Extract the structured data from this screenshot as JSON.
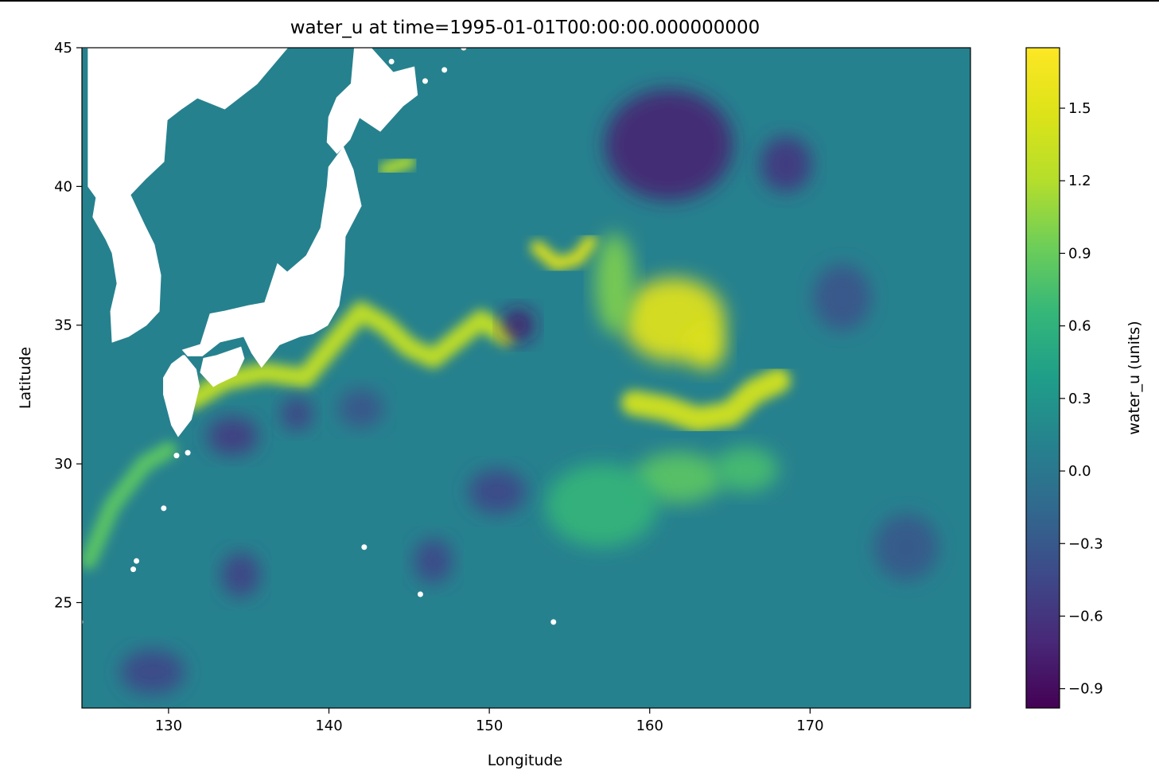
{
  "chart_data": {
    "type": "heatmap",
    "title": "water_u at time=1995-01-01T00:00:00.000000000",
    "xlabel": "Longitude",
    "ylabel": "Latitude",
    "xlim": [
      124.6,
      180.0
    ],
    "ylim": [
      21.2,
      45.0
    ],
    "x_ticks": [
      {
        "value": 130,
        "label": "130"
      },
      {
        "value": 140,
        "label": "140"
      },
      {
        "value": 150,
        "label": "150"
      },
      {
        "value": 160,
        "label": "160"
      },
      {
        "value": 170,
        "label": "170"
      }
    ],
    "y_ticks": [
      {
        "value": 25,
        "label": "25"
      },
      {
        "value": 30,
        "label": "30"
      },
      {
        "value": 35,
        "label": "35"
      },
      {
        "value": 40,
        "label": "40"
      },
      {
        "value": 45,
        "label": "45"
      }
    ],
    "colorbar": {
      "label": "water_u (units)",
      "colormap": "viridis",
      "vmin": -0.98,
      "vmax": 1.75,
      "ticks": [
        {
          "value": 1.5,
          "label": "1.5"
        },
        {
          "value": 1.2,
          "label": "1.2"
        },
        {
          "value": 0.9,
          "label": "0.9"
        },
        {
          "value": 0.6,
          "label": "0.6"
        },
        {
          "value": 0.3,
          "label": "0.3"
        },
        {
          "value": 0.0,
          "label": "0.0"
        },
        {
          "value": -0.3,
          "label": "−0.3"
        },
        {
          "value": -0.6,
          "label": "−0.6"
        },
        {
          "value": -0.9,
          "label": "−0.9"
        }
      ]
    },
    "grid": false,
    "background_value": 0.1,
    "features": [
      {
        "kind": "jet",
        "points": [
          [
            131.5,
            32.3
          ],
          [
            133.5,
            33.0
          ],
          [
            136,
            33.3
          ],
          [
            138.5,
            33.1
          ],
          [
            140.5,
            34.5
          ],
          [
            142,
            35.5
          ],
          [
            143.5,
            35.0
          ],
          [
            145,
            34.2
          ],
          [
            146.5,
            33.8
          ],
          [
            148,
            34.5
          ],
          [
            149.5,
            35.2
          ],
          [
            151,
            34.6
          ]
        ],
        "value": 1.3,
        "width": 0.7
      },
      {
        "kind": "jet",
        "points": [
          [
            143.5,
            40.6
          ],
          [
            145,
            40.9
          ]
        ],
        "value": 1.2,
        "width": 0.5
      },
      {
        "kind": "jet",
        "points": [
          [
            153,
            37.8
          ],
          [
            154.2,
            37.2
          ],
          [
            155.5,
            37.4
          ],
          [
            156.3,
            38.0
          ]
        ],
        "value": 1.5,
        "width": 0.5
      },
      {
        "kind": "blob",
        "lon": 161.5,
        "lat": 35.2,
        "rx": 3.2,
        "ry": 1.5,
        "value": 1.55
      },
      {
        "kind": "blob",
        "lon": 163.5,
        "lat": 34.2,
        "rx": 1.2,
        "ry": 0.8,
        "value": 1.5
      },
      {
        "kind": "blob",
        "lon": 157.8,
        "lat": 36.5,
        "rx": 1.2,
        "ry": 1.8,
        "value": 1.0
      },
      {
        "kind": "jet",
        "points": [
          [
            159,
            32.2
          ],
          [
            161,
            32.0
          ],
          [
            163,
            31.6
          ],
          [
            165,
            31.8
          ],
          [
            166.5,
            32.6
          ],
          [
            168,
            33.0
          ]
        ],
        "value": 1.4,
        "width": 0.9
      },
      {
        "kind": "blob",
        "lon": 161.8,
        "lat": 29.5,
        "rx": 2.8,
        "ry": 0.9,
        "value": 0.85
      },
      {
        "kind": "blob",
        "lon": 166,
        "lat": 29.8,
        "rx": 2.0,
        "ry": 0.8,
        "value": 0.75
      },
      {
        "kind": "blob",
        "lon": 157,
        "lat": 28.5,
        "rx": 3.5,
        "ry": 1.5,
        "value": 0.65
      },
      {
        "kind": "jet",
        "points": [
          [
            125,
            26.5
          ],
          [
            126.5,
            28.5
          ],
          [
            128.5,
            30.0
          ],
          [
            130,
            30.5
          ]
        ],
        "value": 0.85,
        "width": 0.6
      },
      {
        "kind": "blob",
        "lon": 161.2,
        "lat": 41.5,
        "rx": 4.0,
        "ry": 2.0,
        "value": -0.75
      },
      {
        "kind": "blob",
        "lon": 168.5,
        "lat": 40.8,
        "rx": 1.6,
        "ry": 1.0,
        "value": -0.6
      },
      {
        "kind": "blob",
        "lon": 151.8,
        "lat": 35.0,
        "rx": 1.0,
        "ry": 0.6,
        "value": -0.8
      },
      {
        "kind": "blob",
        "lon": 134,
        "lat": 31.0,
        "rx": 1.6,
        "ry": 0.7,
        "value": -0.55
      },
      {
        "kind": "blob",
        "lon": 138,
        "lat": 31.8,
        "rx": 1.0,
        "ry": 0.6,
        "value": -0.5
      },
      {
        "kind": "blob",
        "lon": 150.5,
        "lat": 29.0,
        "rx": 1.8,
        "ry": 0.8,
        "value": -0.45
      },
      {
        "kind": "blob",
        "lon": 146.5,
        "lat": 26.5,
        "rx": 1.2,
        "ry": 0.8,
        "value": -0.45
      },
      {
        "kind": "blob",
        "lon": 134.5,
        "lat": 26.0,
        "rx": 1.2,
        "ry": 0.8,
        "value": -0.5
      },
      {
        "kind": "blob",
        "lon": 129,
        "lat": 22.5,
        "rx": 2.0,
        "ry": 0.8,
        "value": -0.45
      },
      {
        "kind": "blob",
        "lon": 172,
        "lat": 36.0,
        "rx": 1.8,
        "ry": 1.2,
        "value": -0.35
      },
      {
        "kind": "blob",
        "lon": 176,
        "lat": 27.0,
        "rx": 2.0,
        "ry": 1.2,
        "value": -0.3
      },
      {
        "kind": "blob",
        "lon": 142,
        "lat": 32.0,
        "rx": 1.4,
        "ry": 0.7,
        "value": -0.35
      }
    ],
    "land": [
      [
        [
          124.6,
          45.0
        ],
        [
          125.0,
          45.0
        ],
        [
          125.0,
          40.0
        ],
        [
          125.5,
          39.6
        ],
        [
          125.3,
          38.9
        ],
        [
          126.1,
          38.1
        ],
        [
          126.5,
          37.6
        ],
        [
          126.8,
          36.5
        ],
        [
          126.4,
          35.5
        ],
        [
          126.5,
          34.4
        ],
        [
          127.5,
          34.6
        ],
        [
          128.6,
          35.0
        ],
        [
          129.4,
          35.5
        ],
        [
          129.5,
          36.8
        ],
        [
          129.1,
          37.9
        ],
        [
          128.5,
          38.6
        ],
        [
          127.6,
          39.7
        ],
        [
          128.6,
          40.3
        ],
        [
          129.7,
          40.9
        ],
        [
          129.9,
          42.4
        ],
        [
          130.8,
          42.8
        ],
        [
          131.8,
          43.2
        ],
        [
          133.5,
          42.8
        ],
        [
          135.5,
          43.7
        ],
        [
          137.4,
          45.0
        ]
      ],
      [
        [
          130.9,
          33.9
        ],
        [
          130.2,
          33.6
        ],
        [
          129.7,
          33.1
        ],
        [
          129.7,
          32.5
        ],
        [
          130.2,
          31.4
        ],
        [
          130.6,
          31.0
        ],
        [
          131.0,
          31.3
        ],
        [
          131.4,
          31.6
        ],
        [
          131.9,
          32.8
        ],
        [
          131.7,
          33.4
        ],
        [
          131.0,
          33.9
        ]
      ],
      [
        [
          130.9,
          34.1
        ],
        [
          132.0,
          34.3
        ],
        [
          132.6,
          35.4
        ],
        [
          133.5,
          35.5
        ],
        [
          135.0,
          35.7
        ],
        [
          136.0,
          35.8
        ],
        [
          136.8,
          37.2
        ],
        [
          137.4,
          36.9
        ],
        [
          138.6,
          37.5
        ],
        [
          139.5,
          38.5
        ],
        [
          139.9,
          40.0
        ],
        [
          140.0,
          40.7
        ],
        [
          140.9,
          41.4
        ],
        [
          141.5,
          40.6
        ],
        [
          142.0,
          39.3
        ],
        [
          141.0,
          38.2
        ],
        [
          140.9,
          36.8
        ],
        [
          140.6,
          35.7
        ],
        [
          139.9,
          35.0
        ],
        [
          139.0,
          34.7
        ],
        [
          138.2,
          34.6
        ],
        [
          136.9,
          34.3
        ],
        [
          135.8,
          33.5
        ],
        [
          135.2,
          34.0
        ],
        [
          134.7,
          34.6
        ],
        [
          133.2,
          34.4
        ],
        [
          132.1,
          33.9
        ],
        [
          131.2,
          33.9
        ]
      ],
      [
        [
          132.0,
          33.3
        ],
        [
          132.8,
          32.8
        ],
        [
          133.1,
          32.9
        ],
        [
          134.2,
          33.2
        ],
        [
          134.7,
          33.8
        ],
        [
          134.5,
          34.2
        ],
        [
          133.0,
          33.9
        ],
        [
          132.2,
          33.8
        ]
      ],
      [
        [
          139.9,
          41.6
        ],
        [
          140.5,
          41.2
        ],
        [
          141.3,
          41.7
        ],
        [
          141.9,
          42.5
        ],
        [
          143.2,
          42.0
        ],
        [
          144.6,
          42.9
        ],
        [
          145.5,
          43.3
        ],
        [
          145.3,
          44.3
        ],
        [
          144.0,
          44.1
        ],
        [
          142.6,
          45.0
        ],
        [
          141.6,
          45.0
        ],
        [
          141.4,
          43.7
        ],
        [
          140.5,
          43.2
        ],
        [
          140.0,
          42.5
        ]
      ]
    ],
    "islands": [
      [
        141.3,
        45.2
      ],
      [
        143.9,
        44.5
      ],
      [
        146.0,
        43.8
      ],
      [
        147.2,
        44.2
      ],
      [
        148.4,
        45.0
      ],
      [
        129.7,
        28.4
      ],
      [
        128.0,
        26.5
      ],
      [
        127.8,
        26.2
      ],
      [
        124.5,
        24.3
      ],
      [
        131.2,
        30.4
      ],
      [
        130.5,
        30.3
      ],
      [
        142.2,
        27.0
      ],
      [
        145.7,
        25.3
      ],
      [
        154.0,
        24.3
      ]
    ]
  }
}
